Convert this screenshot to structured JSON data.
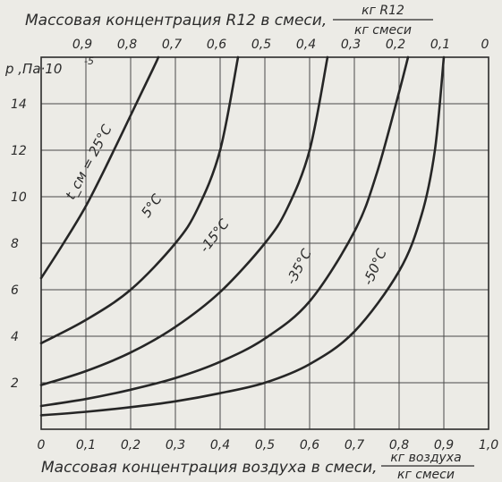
{
  "chart_data": {
    "type": "line",
    "title": "Массовая концентрация R12 в смеси,",
    "title_unit_num": "кг R12",
    "title_unit_den": "кг смеси",
    "xlabel": "Массовая концентрация воздуха в смеси,",
    "xlabel_unit_num": "кг воздуха",
    "xlabel_unit_den": "кг смеси",
    "ylabel": "p ,Па·10",
    "ylabel_exp": "-5",
    "xlim": [
      0,
      1.0
    ],
    "ylim": [
      0,
      16
    ],
    "grid": true,
    "x_ticks": [
      "0",
      "0,1",
      "0,2",
      "0,3",
      "0,4",
      "0,5",
      "0,6",
      "0,7",
      "0,8",
      "0,9",
      "1,0"
    ],
    "x_tick_values": [
      0,
      0.1,
      0.2,
      0.3,
      0.4,
      0.5,
      0.6,
      0.7,
      0.8,
      0.9,
      1.0
    ],
    "top_ticks": [
      "0,9",
      "0,8",
      "0,7",
      "0,6",
      "0,5",
      "0,4",
      "0,3",
      "0,2",
      "0,1",
      "0"
    ],
    "top_tick_values": [
      0.1,
      0.2,
      0.3,
      0.4,
      0.5,
      0.6,
      0.7,
      0.8,
      0.9,
      1.0
    ],
    "y_ticks": [
      "2",
      "4",
      "6",
      "8",
      "10",
      "12",
      "14"
    ],
    "y_tick_values": [
      2,
      4,
      6,
      8,
      10,
      12,
      14
    ],
    "series": [
      {
        "name": "t_см = 25°C",
        "x": [
          0,
          0.05,
          0.1,
          0.15,
          0.2,
          0.25,
          0.262
        ],
        "y": [
          6.5,
          8.0,
          9.6,
          11.5,
          13.5,
          15.5,
          16
        ]
      },
      {
        "name": "5°C",
        "x": [
          0,
          0.1,
          0.2,
          0.3,
          0.35,
          0.4,
          0.44
        ],
        "y": [
          3.7,
          4.7,
          6.0,
          8.0,
          9.5,
          12.0,
          16
        ]
      },
      {
        "name": "-15°C",
        "x": [
          0,
          0.1,
          0.2,
          0.3,
          0.4,
          0.5,
          0.55,
          0.6,
          0.64
        ],
        "y": [
          1.9,
          2.5,
          3.3,
          4.4,
          5.9,
          8.0,
          9.5,
          12.0,
          16
        ]
      },
      {
        "name": "-35°C",
        "x": [
          0,
          0.1,
          0.2,
          0.3,
          0.4,
          0.5,
          0.6,
          0.7,
          0.75,
          0.8,
          0.82
        ],
        "y": [
          1.0,
          1.3,
          1.7,
          2.2,
          2.9,
          3.9,
          5.5,
          8.5,
          11.0,
          14.5,
          16
        ]
      },
      {
        "name": "-50°C",
        "x": [
          0,
          0.1,
          0.2,
          0.3,
          0.4,
          0.5,
          0.6,
          0.7,
          0.8,
          0.85,
          0.88,
          0.9
        ],
        "y": [
          0.6,
          0.75,
          0.95,
          1.2,
          1.55,
          2.0,
          2.8,
          4.2,
          6.8,
          9.2,
          12.0,
          16
        ]
      }
    ],
    "curve_labels": [
      "t_см = 25°C",
      "5°C",
      "-15°C",
      "-35°C",
      "-50°C"
    ],
    "colors": {
      "line": "#262626",
      "grid": "#4a4a4a",
      "background": "#ecebe6"
    }
  }
}
